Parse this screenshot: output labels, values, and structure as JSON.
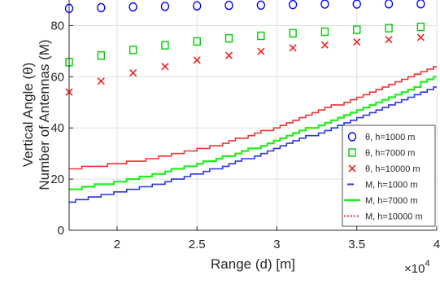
{
  "chart_data": {
    "type": "scatter",
    "xlabel": "Range (d) [m]",
    "ylabel": [
      "Vertical Angle (θ)",
      "Number of Antennas (M)"
    ],
    "x_multiplier": "×10",
    "x_multiplier_exp": "4",
    "xlim": [
      17000,
      40000
    ],
    "ylim": [
      0,
      90
    ],
    "xticks": [
      20000,
      25000,
      30000,
      35000,
      40000
    ],
    "xtick_labels": [
      "2",
      "2.5",
      "3",
      "3.5",
      "4"
    ],
    "yticks": [
      0,
      20,
      40,
      60,
      80
    ],
    "ytick_labels": [
      "0",
      "20",
      "40",
      "60",
      "80"
    ],
    "grid": true,
    "legend_position": "bottom-right",
    "marker_x": [
      17000,
      19000,
      21000,
      23000,
      25000,
      27000,
      29000,
      31000,
      33000,
      35000,
      37000,
      39000
    ],
    "marker_series": [
      {
        "name": "θ, h=1000 m",
        "color": "#0000ff",
        "marker": "circle",
        "values": [
          86.7,
          87.0,
          87.3,
          87.5,
          87.7,
          87.9,
          88.0,
          88.2,
          88.4,
          88.4,
          88.5,
          88.5
        ]
      },
      {
        "name": "θ, h=7000 m",
        "color": "#00cc00",
        "marker": "square",
        "values": [
          65.7,
          68.3,
          70.5,
          72.3,
          73.8,
          75.0,
          76.0,
          77.0,
          77.6,
          78.4,
          79.0,
          79.5
        ]
      },
      {
        "name": "θ, h=10000 m",
        "color": "#ee2222",
        "marker": "x",
        "values": [
          54.0,
          58.3,
          61.5,
          64.0,
          66.5,
          68.3,
          69.9,
          71.3,
          72.4,
          73.6,
          74.5,
          75.4
        ]
      }
    ],
    "line_x": [
      17000,
      20000,
      23000,
      26000,
      29000,
      32000,
      35000,
      38000,
      40000
    ],
    "line_series": [
      {
        "name": "M, h=1000 m",
        "color": "#2b35e6",
        "style": "dash",
        "values": [
          11.0,
          15.0,
          19.0,
          24.0,
          30.0,
          37.0,
          44.0,
          51.5,
          57.0
        ]
      },
      {
        "name": "M, h=7000 m",
        "color": "#22ee22",
        "style": "solid",
        "values": [
          16.0,
          19.0,
          23.0,
          27.5,
          33.0,
          40.0,
          47.0,
          54.5,
          60.5
        ]
      },
      {
        "name": "M, h=10000 m",
        "color": "#ee3333",
        "style": "dotted",
        "values": [
          24.0,
          26.0,
          29.0,
          33.0,
          38.5,
          45.5,
          52.0,
          59.5,
          65.0
        ]
      }
    ]
  }
}
